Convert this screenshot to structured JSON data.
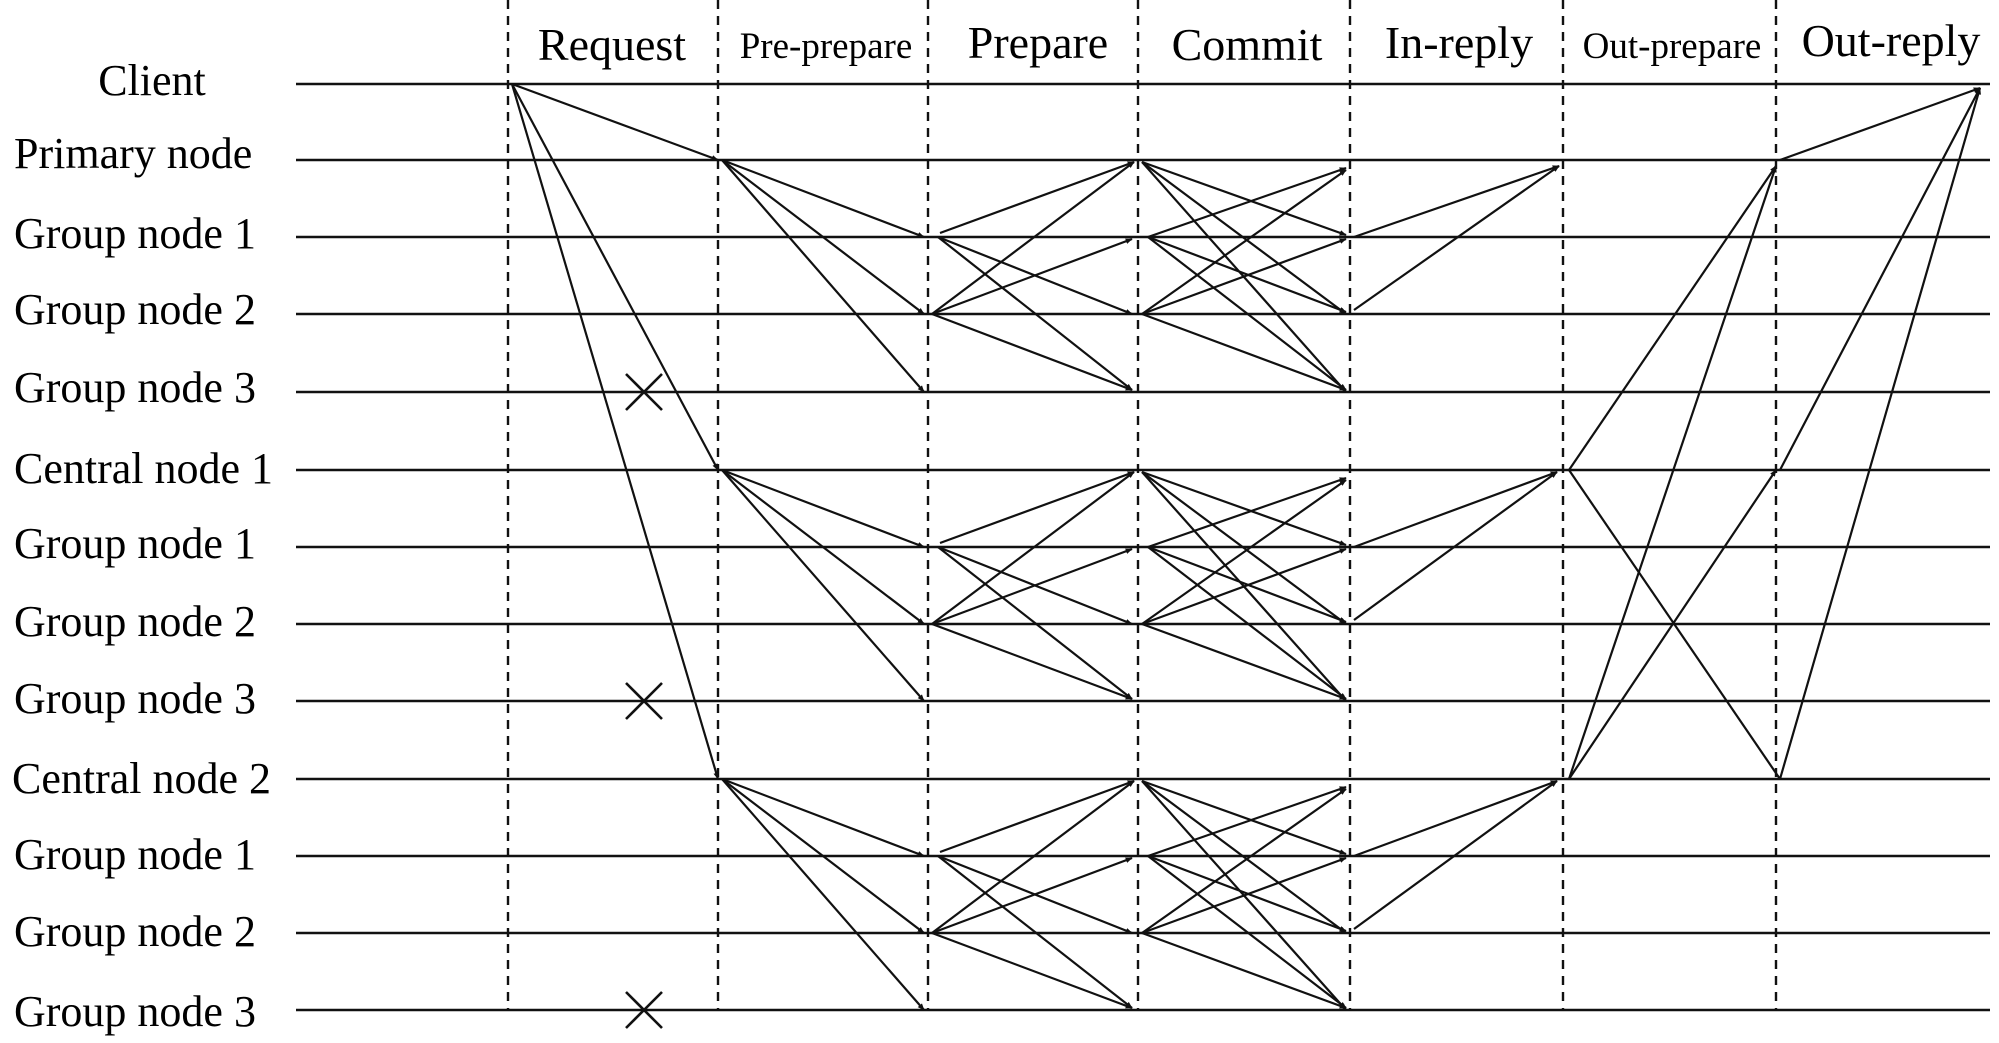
{
  "phases": [
    "Request",
    "Pre-prepare",
    "Prepare",
    "Commit",
    "In-reply",
    "Out-prepare",
    "Out-reply"
  ],
  "nodes": [
    "Client",
    "Primary node",
    "Group node 1",
    "Group node 2",
    "Group node 3",
    "Central node 1",
    "Group node 1",
    "Group node 2",
    "Group node 3",
    "Central node 2",
    "Group node 1",
    "Group node 2",
    "Group node 3"
  ],
  "failed_nodes": [
    "Group node 3",
    "Group node 3",
    "Group node 3"
  ],
  "failure_marker": "×"
}
